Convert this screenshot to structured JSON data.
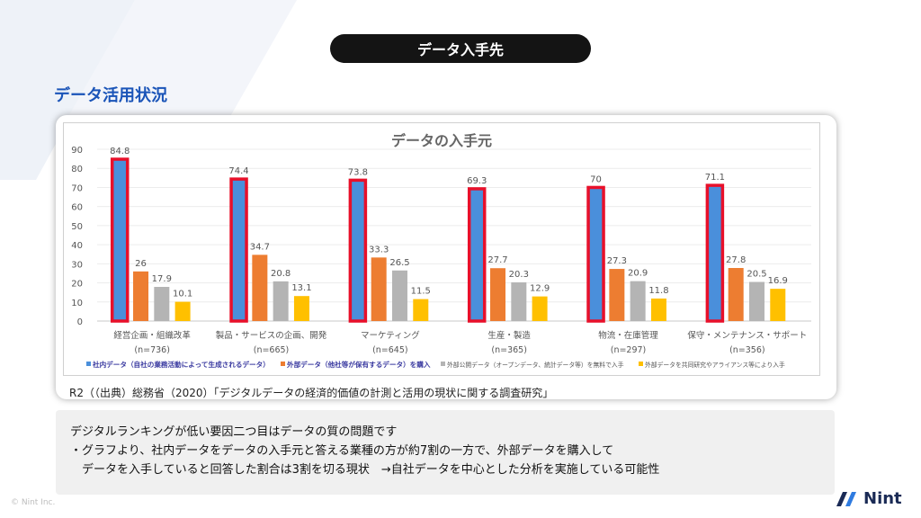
{
  "header": {
    "title": "データ入手先"
  },
  "section": {
    "title": "データ活用状況"
  },
  "chart_data": {
    "type": "bar",
    "title": "データの入手元",
    "ylim": [
      0,
      90
    ],
    "yticks": [
      0,
      10,
      20,
      30,
      40,
      50,
      60,
      70,
      80,
      90
    ],
    "grid": true,
    "legend": "bottom",
    "categories": [
      {
        "label": "経営企画・組織改革",
        "n": "(n=736)"
      },
      {
        "label": "製品・サービスの企画、開発",
        "n": "(n=665)"
      },
      {
        "label": "マーケティング",
        "n": "(n=645)"
      },
      {
        "label": "生産・製造",
        "n": "(n=365)"
      },
      {
        "label": "物流・在庫管理",
        "n": "(n=297)"
      },
      {
        "label": "保守・メンテナンス・サポート",
        "n": "(n=356)"
      }
    ],
    "series": [
      {
        "name": "社内データ（自社の業務活動によって生成されるデータ）",
        "color": "#4a8fdb",
        "highlight": "#e8102a",
        "values": [
          84.8,
          74.4,
          73.8,
          69.3,
          70,
          71.1
        ]
      },
      {
        "name": "外部データ（他社等が保有するデータ）を購入",
        "color": "#ed7d31",
        "values": [
          26,
          34.7,
          33.3,
          27.7,
          27.3,
          27.8
        ]
      },
      {
        "name": "外部公開データ（オープンデータ、統計データ等）を無料で入手",
        "color": "#b4b4b4",
        "values": [
          17.9,
          20.8,
          26.5,
          20.3,
          20.9,
          20.5
        ]
      },
      {
        "name": "外部データを共同研究やアライアンス等により入手",
        "color": "#ffc000",
        "values": [
          10.1,
          13.1,
          11.5,
          12.9,
          11.8,
          16.9
        ]
      }
    ]
  },
  "source": "R2（（出典）総務省（2020）「デジタルデータの経済的価値の計測と活用の現状に関する調査研究」",
  "notes": {
    "line1": "デジタルランキングが低い要因二つ目はデータの質の問題です",
    "line2": "・グラフより、社内データをデータの入手元と答える業種の方が約7割の一方で、外部データを購入して",
    "line3": "　データを入手していると回答した割合は3割を切る現状　→自社データを中心とした分析を実施している可能性"
  },
  "footer": {
    "copyright": "© Nint Inc.",
    "logo": "Nint"
  }
}
